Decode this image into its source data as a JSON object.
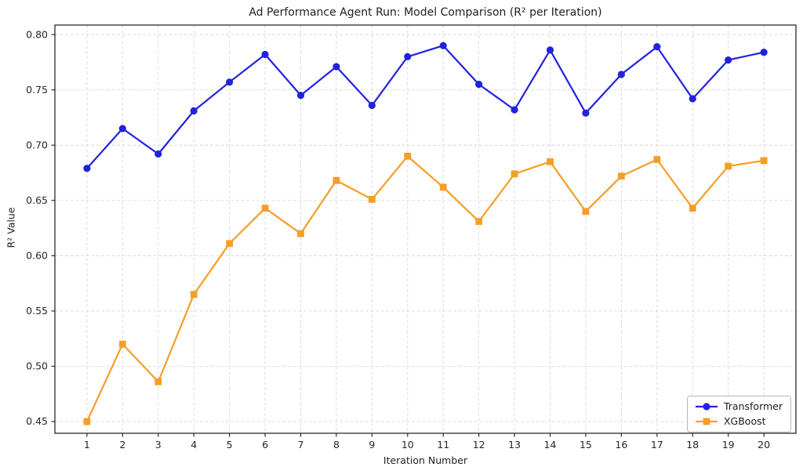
{
  "chart_data": {
    "type": "line",
    "title": "Ad Performance Agent Run: Model Comparison (R² per Iteration)",
    "xlabel": "Iteration Number",
    "ylabel": "R² Value",
    "x": [
      1,
      2,
      3,
      4,
      5,
      6,
      7,
      8,
      9,
      10,
      11,
      12,
      13,
      14,
      15,
      16,
      17,
      18,
      19,
      20
    ],
    "series": [
      {
        "name": "Transformer",
        "marker": "circle",
        "color": "#2222dd",
        "values": [
          0.679,
          0.715,
          0.692,
          0.731,
          0.757,
          0.782,
          0.745,
          0.771,
          0.736,
          0.78,
          0.79,
          0.755,
          0.732,
          0.786,
          0.729,
          0.764,
          0.789,
          0.742,
          0.777,
          0.784
        ]
      },
      {
        "name": "XGBoost",
        "marker": "square",
        "color": "#f59e27",
        "values": [
          0.45,
          0.52,
          0.486,
          0.565,
          0.611,
          0.643,
          0.62,
          0.668,
          0.651,
          0.69,
          0.662,
          0.631,
          0.674,
          0.685,
          0.64,
          0.672,
          0.687,
          0.643,
          0.681,
          0.686
        ]
      }
    ],
    "yticks": [
      0.45,
      0.5,
      0.55,
      0.6,
      0.65,
      0.7,
      0.75,
      0.8
    ],
    "ytick_labels": [
      "0.45",
      "0.50",
      "0.55",
      "0.60",
      "0.65",
      "0.70",
      "0.75",
      "0.80"
    ],
    "xtick_labels": [
      "1",
      "2",
      "3",
      "4",
      "5",
      "6",
      "7",
      "8",
      "9",
      "10",
      "11",
      "12",
      "13",
      "14",
      "15",
      "16",
      "17",
      "18",
      "19",
      "20"
    ],
    "xlim": [
      0.1,
      20.9
    ],
    "ylim": [
      0.4394,
      0.8086
    ],
    "grid": true,
    "legend_position": "lower right",
    "grid_color": "#d9d9d9",
    "spine_color": "#2a2a2a",
    "tick_label_color": "#262626"
  }
}
